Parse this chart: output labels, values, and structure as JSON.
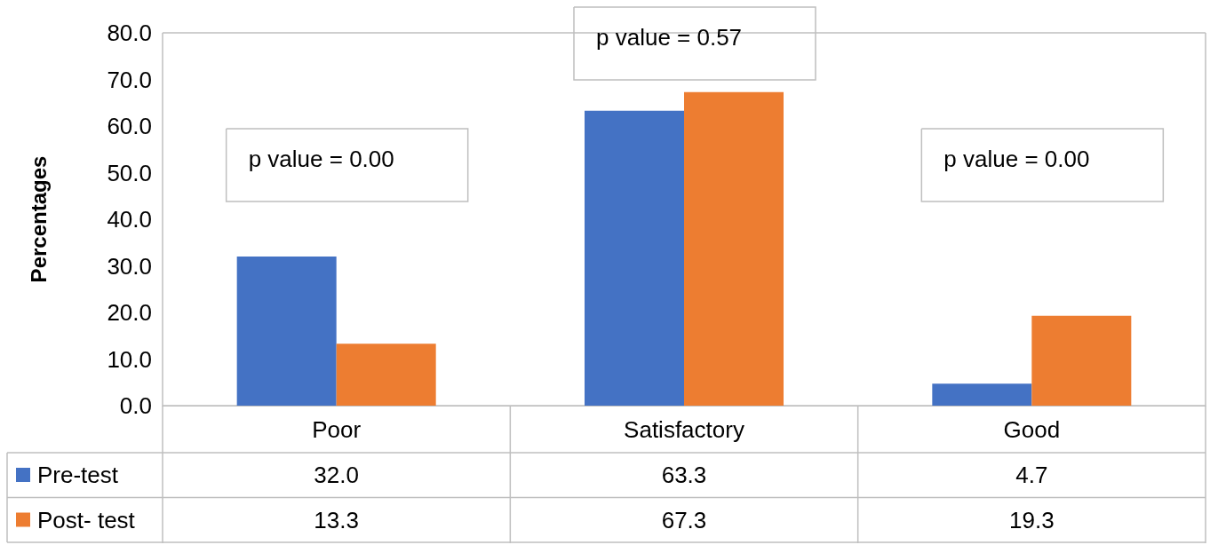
{
  "chart_data": {
    "type": "bar",
    "ylabel": "Percentages",
    "categories": [
      "Poor",
      "Satisfactory",
      "Good"
    ],
    "series": [
      {
        "name": "Pre-test",
        "color": "#4472c4",
        "values": [
          32.0,
          63.3,
          4.7
        ],
        "value_labels": [
          "32.0",
          "63.3",
          "4.7"
        ]
      },
      {
        "name": "Post- test",
        "color": "#ed7d31",
        "values": [
          13.3,
          67.3,
          19.3
        ],
        "value_labels": [
          "13.3",
          "67.3",
          "19.3"
        ]
      }
    ],
    "ylim": [
      0,
      80
    ],
    "yticks": [
      {
        "value": 0,
        "label": "0.0"
      },
      {
        "value": 10,
        "label": "10.0"
      },
      {
        "value": 20,
        "label": "20.0"
      },
      {
        "value": 30,
        "label": "30.0"
      },
      {
        "value": 40,
        "label": "40.0"
      },
      {
        "value": 50,
        "label": "50.0"
      },
      {
        "value": 60,
        "label": "60.0"
      },
      {
        "value": 70,
        "label": "70.0"
      },
      {
        "value": 80,
        "label": "80.0"
      }
    ],
    "annotations": [
      "p value = 0.00",
      "p value = 0.57",
      "p value = 0.00"
    ],
    "legend": "bottom left",
    "grid": false
  }
}
